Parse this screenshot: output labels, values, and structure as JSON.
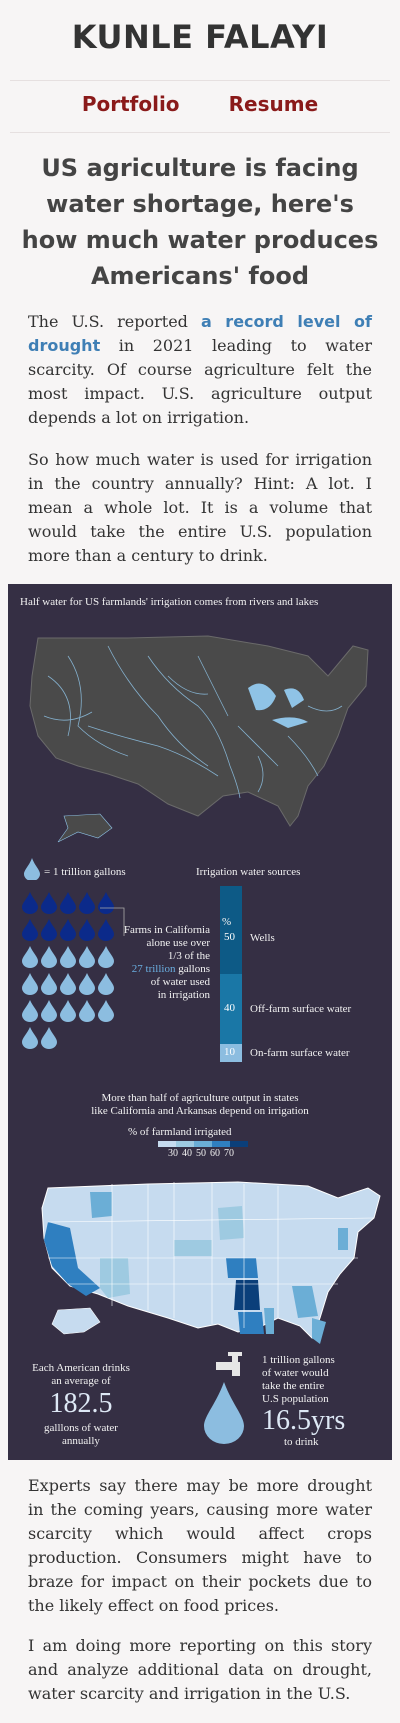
{
  "site": {
    "title": "KUNLE FALAYI"
  },
  "nav": {
    "portfolio": "Portfolio",
    "resume": "Resume"
  },
  "article": {
    "headline": "US agriculture is facing water shortage, here's how much water produces Americans' food",
    "p1_before": "The U.S. reported ",
    "p1_link": "a record level of drought",
    "p1_after": " in 2021 leading to water scarcity. Of course agriculture felt the most impact. U.S. agriculture output depends a lot on irrigation.",
    "p2": "So how much water is used for irrigation in the country annually? Hint: A lot. I mean a whole lot. It is a volume that would take the entire U.S. population more than a century to drink.",
    "p3": "Experts say there may be more drought in the coming years, causing more water scarcity which would affect crops production. Consumers might have to braze for impact on their pockets due to the likely effect on food prices.",
    "p4": "I am doing more reporting on this story and analyze additional data on drought, water scarcity and irrigation in the U.S."
  },
  "graphic": {
    "map_title": "Half water for US farmlands' irrigation comes from rivers and lakes",
    "legend_unit": "= 1 trillion gallons",
    "california_l1": "Farms in California",
    "california_l2": "alone use over",
    "california_l3": "1/3 of the",
    "california_num": "27 trillion",
    "california_l4": " gallons",
    "california_l5": "of water used",
    "california_l6": "in irrigation",
    "drops": {
      "total": 27,
      "dark": 10
    },
    "sources_title": "Irrigation water sources",
    "percent_symbol": "%",
    "sources": [
      {
        "label": "Wells",
        "value": 50,
        "color": "#0d5a86"
      },
      {
        "label": "Off-farm surface water",
        "value": 40,
        "color": "#1a77a6"
      },
      {
        "label": "On-farm surface water",
        "value": 10,
        "color": "#8cbde0"
      }
    ],
    "choropleth_title_1": "More than half of agriculture output in states",
    "choropleth_title_2": "like California and Arkansas depend on irrigation",
    "choropleth_legend_title": "% of farmland irrigated",
    "choropleth_ticks": [
      "30",
      "40",
      "50",
      "60",
      "70"
    ],
    "choropleth_colors": [
      "#c6dbef",
      "#9ecae1",
      "#6baed6",
      "#2f7fc0",
      "#0b3f7a"
    ],
    "drink_l1": "Each American drinks",
    "drink_l2": "an average of",
    "drink_value": "182.5",
    "drink_l3": "galllons of water",
    "drink_l4": "annually",
    "pop_l1": "1 trillion gallons",
    "pop_l2": "of water would",
    "pop_l3": "take the entire",
    "pop_l4": "U.S population",
    "pop_value": "16.5yrs",
    "pop_l5": "to drink"
  }
}
